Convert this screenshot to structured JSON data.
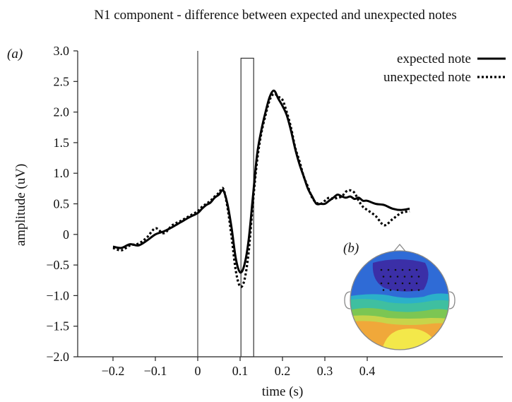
{
  "chart_data": {
    "type": "line",
    "title": "N1 component - difference between expected and unexpected notes",
    "panel_a_label": "(a)",
    "panel_b_label": "(b)",
    "xlabel": "time (s)",
    "ylabel": "amplitude (uV)",
    "xlim": [
      -0.2,
      0.5
    ],
    "ylim": [
      -2.0,
      3.0
    ],
    "x_ticks": [
      -0.2,
      -0.1,
      0,
      0.1,
      0.2,
      0.3,
      0.4
    ],
    "x_tick_labels": [
      "−0.2",
      "−0.1",
      "0",
      "0.1",
      "0.2",
      "0.3",
      "0.4"
    ],
    "y_ticks": [
      -2.0,
      -1.5,
      -1.0,
      -0.5,
      0,
      0.5,
      1.0,
      1.5,
      2.0,
      2.5,
      3.0
    ],
    "y_tick_labels": [
      "−2.0",
      "−1.5",
      "−1.0",
      "−0.5",
      "0",
      "0.5",
      "1.0",
      "1.5",
      "2.0",
      "2.5",
      "3.0"
    ],
    "grid": false,
    "legend_position": "top-right",
    "onset_line_x": 0,
    "analysis_window": {
      "x_start": 0.102,
      "x_end": 0.132,
      "y_top": 2.88
    },
    "series": [
      {
        "name": "expected note",
        "style": "solid",
        "x": [
          -0.2,
          -0.18,
          -0.16,
          -0.14,
          -0.12,
          -0.1,
          -0.08,
          -0.06,
          -0.04,
          -0.02,
          0,
          0.01,
          0.02,
          0.03,
          0.04,
          0.05,
          0.06,
          0.07,
          0.08,
          0.09,
          0.1,
          0.11,
          0.12,
          0.13,
          0.14,
          0.15,
          0.16,
          0.17,
          0.18,
          0.19,
          0.2,
          0.21,
          0.22,
          0.23,
          0.24,
          0.25,
          0.26,
          0.27,
          0.28,
          0.29,
          0.3,
          0.31,
          0.32,
          0.33,
          0.34,
          0.35,
          0.36,
          0.37,
          0.38,
          0.39,
          0.4,
          0.42,
          0.44,
          0.46,
          0.48,
          0.5
        ],
        "y": [
          -0.2,
          -0.22,
          -0.16,
          -0.18,
          -0.1,
          0.0,
          0.05,
          0.12,
          0.2,
          0.28,
          0.35,
          0.42,
          0.48,
          0.52,
          0.6,
          0.65,
          0.72,
          0.5,
          0.1,
          -0.4,
          -0.62,
          -0.5,
          -0.1,
          0.6,
          1.3,
          1.7,
          2.0,
          2.25,
          2.35,
          2.22,
          2.1,
          1.95,
          1.7,
          1.4,
          1.15,
          0.95,
          0.75,
          0.62,
          0.5,
          0.5,
          0.5,
          0.55,
          0.6,
          0.65,
          0.62,
          0.6,
          0.62,
          0.58,
          0.6,
          0.55,
          0.55,
          0.5,
          0.48,
          0.42,
          0.4,
          0.42
        ]
      },
      {
        "name": "unexpected note",
        "style": "dotted",
        "x": [
          -0.2,
          -0.18,
          -0.16,
          -0.14,
          -0.12,
          -0.1,
          -0.08,
          -0.06,
          -0.04,
          -0.02,
          0,
          0.01,
          0.02,
          0.03,
          0.04,
          0.05,
          0.06,
          0.07,
          0.08,
          0.09,
          0.1,
          0.11,
          0.12,
          0.13,
          0.14,
          0.15,
          0.16,
          0.17,
          0.18,
          0.19,
          0.2,
          0.21,
          0.22,
          0.23,
          0.24,
          0.25,
          0.26,
          0.27,
          0.28,
          0.29,
          0.3,
          0.31,
          0.32,
          0.33,
          0.34,
          0.35,
          0.36,
          0.37,
          0.38,
          0.39,
          0.4,
          0.42,
          0.44,
          0.46,
          0.48,
          0.5
        ],
        "y": [
          -0.22,
          -0.26,
          -0.18,
          -0.15,
          -0.05,
          0.1,
          0.02,
          0.15,
          0.22,
          0.3,
          0.38,
          0.45,
          0.5,
          0.55,
          0.62,
          0.68,
          0.75,
          0.45,
          -0.05,
          -0.6,
          -0.85,
          -0.75,
          -0.3,
          0.5,
          1.2,
          1.65,
          1.95,
          2.2,
          2.3,
          2.25,
          2.2,
          2.0,
          1.75,
          1.42,
          1.2,
          0.95,
          0.78,
          0.6,
          0.52,
          0.5,
          0.55,
          0.6,
          0.58,
          0.6,
          0.62,
          0.7,
          0.72,
          0.68,
          0.55,
          0.45,
          0.4,
          0.3,
          0.15,
          0.25,
          0.35,
          0.38
        ]
      }
    ]
  },
  "topomap": {
    "nose_color": "#ffffff",
    "outline_color": "#888888",
    "colors": {
      "deep_blue": "#3b2fa7",
      "blue": "#2f6bd6",
      "cyan": "#2bb0c9",
      "teal": "#3fbfa0",
      "green": "#7cc653",
      "yellow_green": "#c8d44a",
      "orange": "#f0a83a",
      "yellow": "#f3e84a"
    }
  }
}
